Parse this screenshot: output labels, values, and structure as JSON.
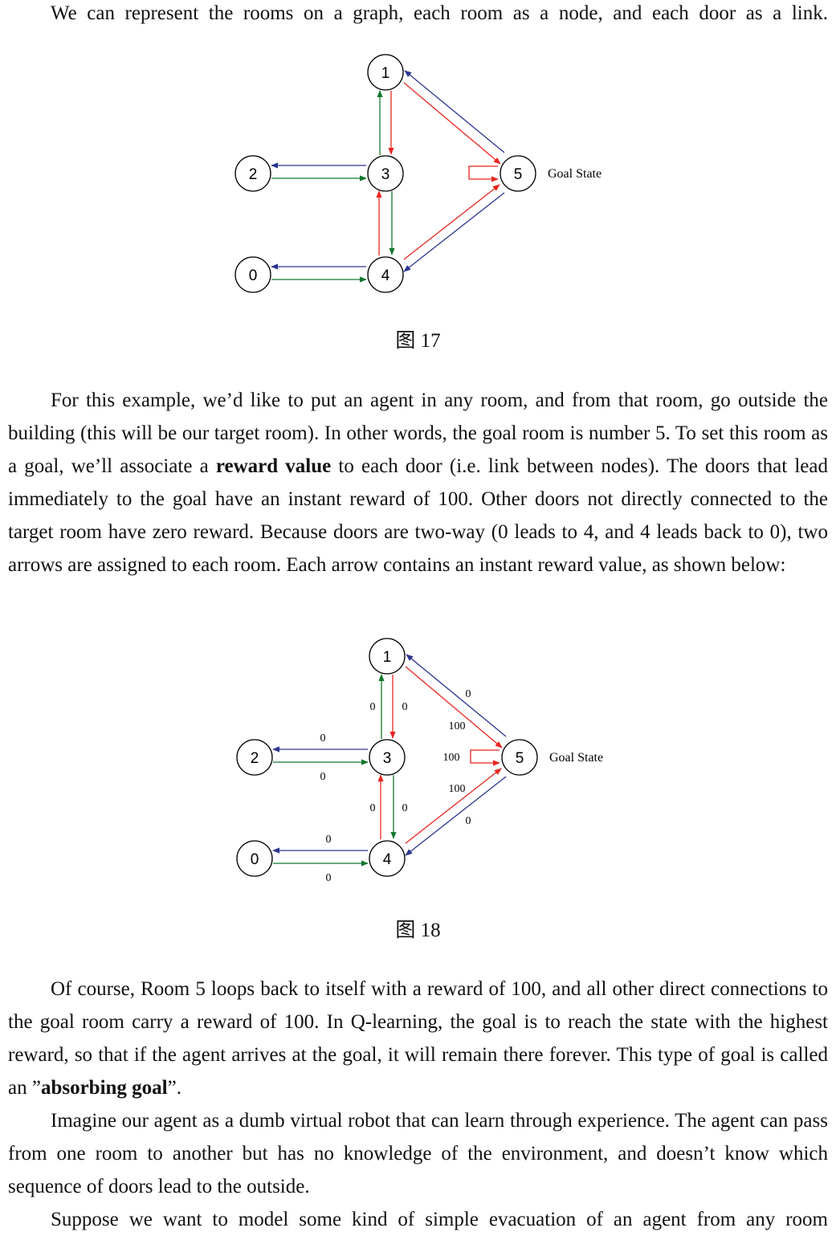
{
  "intro_line": "We can represent the rooms on a graph, each room as a node, and each door as a link.",
  "figure17": {
    "caption": "图 17",
    "nodes": [
      "0",
      "1",
      "2",
      "3",
      "4",
      "5"
    ],
    "goal_label": "Goal State"
  },
  "paragraph1": {
    "text_before": "For this example, we’d like to put an agent in any room, and from that room, go outside the building (this will be our target room). In other words, the goal room is number 5. To set this room as a goal, we’ll associate a ",
    "bold": "reward value",
    "text_after": " to each door (i.e. link between nodes). The doors that lead immediately to the goal have an instant reward of 100. Other doors not directly connected to the target room have zero reward. Because doors are two-way (0 leads to 4, and 4 leads back to 0), two arrows are assigned to each room. Each arrow contains an instant reward value, as shown below:"
  },
  "figure18": {
    "caption": "图 18",
    "nodes": [
      "0",
      "1",
      "2",
      "3",
      "4",
      "5"
    ],
    "goal_label": "Goal State",
    "edge_labels": {
      "r5_to_1": "0",
      "r3_to_1": "0",
      "r1_to_3": "0",
      "r1_to_5": "100",
      "r3_to_2": "0",
      "r2_to_3": "0",
      "r5_to_5": "100",
      "r4_to_5": "100",
      "r4_to_3": "0",
      "r3_to_4": "0",
      "r5_to_4": "0",
      "r4_to_0": "0",
      "r0_to_4": "0"
    }
  },
  "paragraph2": {
    "text_before": "Of course, Room 5 loops back to itself with a reward of 100, and all other direct connections to the goal room carry a reward of 100. In Q-learning, the goal is to reach the state with the highest reward, so that if the agent arrives at the goal, it will remain there forever. This type of goal is called an ”",
    "bold": "absorbing goal",
    "text_after": "”."
  },
  "paragraph3": "Imagine our agent as a dumb virtual robot that can learn through experience. The agent can pass from one room to another but has no knowledge of the environment, and doesn’t know which sequence of doors lead to the outside.",
  "paragraph4_partial": "Suppose we want to model some kind of simple evacuation of an agent from any room",
  "colors": {
    "red_arrow": "#e8261f",
    "green_arrow": "#11792e",
    "blue_arrow": "#2a3590"
  }
}
